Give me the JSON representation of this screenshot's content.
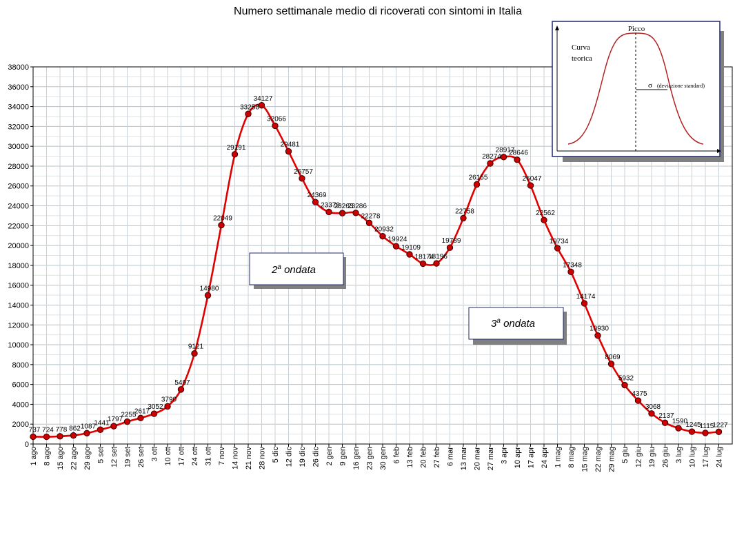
{
  "chart_data": {
    "type": "line",
    "title": "Numero settimanale medio di ricoverati con sintomi in Italia",
    "ylim": [
      0,
      38000
    ],
    "ytick_step": 2000,
    "grid": true,
    "categories": [
      "1 ago",
      "8 ago",
      "15 ago",
      "22 ago",
      "29 ago",
      "5 set",
      "12 set",
      "19 set",
      "26 set",
      "3 ott",
      "10 ott",
      "17 ott",
      "24 ott",
      "31 ott",
      "7 nov",
      "14 nov",
      "21 nov",
      "28 nov",
      "5 dic",
      "12 dic",
      "19 dic",
      "26 dic",
      "2 gen",
      "9 gen",
      "16 gen",
      "23 gen",
      "30 gen",
      "6 feb",
      "13 feb",
      "20 feb",
      "27 feb",
      "6 mar",
      "13 mar",
      "20 mar",
      "27 mar",
      "3 apr",
      "10 apr",
      "17 apr",
      "24 apr",
      "1 mag",
      "8 mag",
      "15 mag",
      "22 mag",
      "29 mag",
      "5 giu",
      "12 giu",
      "19 giu",
      "26 giu",
      "3 lug",
      "10 lug",
      "17 lug",
      "24 lug"
    ],
    "series": [
      {
        "color": "#e00000",
        "marker_color": "#cc0000",
        "values": [
          737,
          724,
          778,
          862,
          1087,
          1441,
          1797,
          2255,
          2617,
          3052,
          3790,
          5497,
          9121,
          14980,
          22049,
          29191,
          33258,
          34127,
          32066,
          29481,
          26757,
          24369,
          23379,
          23263,
          23286,
          22278,
          20932,
          19924,
          19109,
          18174,
          18196,
          19789,
          22758,
          26155,
          28274,
          28917,
          28646,
          26047,
          22562,
          19734,
          17348,
          14174,
          10930,
          8069,
          5932,
          4375,
          3068,
          2137,
          1590,
          1245,
          1115,
          1227
        ],
        "labels": [
          "737",
          "724",
          "778",
          "862",
          "1087",
          "1441",
          "1797",
          "2255",
          "2617",
          "3052",
          "3790",
          "5497",
          "9121",
          "14980",
          "22049",
          "29191",
          "33258",
          "34127",
          "32066",
          "29481",
          "26757",
          "24369",
          "23379",
          "23263",
          "23286",
          "22278",
          "20932",
          "19924",
          "19109",
          "18174",
          "18196",
          "19789",
          "22758",
          "26155",
          "28274",
          "28917",
          "28646",
          "26047",
          "22562",
          "19734",
          "17348",
          "14174",
          "10930",
          "8069",
          "5932",
          "4375",
          "3068",
          "2137",
          "1590",
          "1245",
          "1115",
          "1227"
        ]
      }
    ],
    "annotations": [
      {
        "text_base": "2",
        "text_sup": "a",
        "text_rest": " ondata",
        "x": "17 ott",
        "y": 17500
      },
      {
        "text_base": "3",
        "text_sup": "a",
        "text_rest": " ondata",
        "x": "13 mar",
        "y": 12300
      }
    ],
    "inset": {
      "peak_label": "Picco",
      "curve_label_1": "Curva",
      "curve_label_2": "teorica",
      "sigma_symbol": "σ",
      "sigma_label": "(deviazione standard)"
    }
  }
}
